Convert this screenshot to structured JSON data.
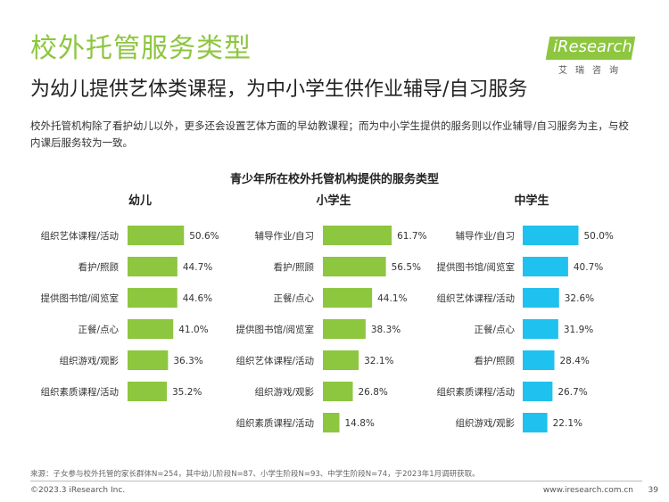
{
  "header": {
    "title": "校外托管服务类型",
    "subtitle": "为幼儿提供艺体类课程，为中小学生供作业辅导/自习服务",
    "description": "校外托管机构除了看护幼儿以外，更多还会设置艺体方面的早幼教课程；而为中小学生提供的服务则以作业辅导/自习服务为主，与校内课后服务较为一致。"
  },
  "logo": {
    "text": "iResearch",
    "sub": "艾瑞咨询"
  },
  "colors": {
    "green": "#8dc63f",
    "blue": "#1fc1ee"
  },
  "chart_data": [
    {
      "type": "bar",
      "orientation": "horizontal",
      "overall_title": "青少年所在校外托管机构提供的服务类型",
      "title": "幼儿",
      "color": "#8dc63f",
      "categories": [
        "组织艺体课程/活动",
        "看护/照顾",
        "提供图书馆/阅览室",
        "正餐/点心",
        "组织游戏/观影",
        "组织素质课程/活动"
      ],
      "values": [
        50.6,
        44.7,
        44.6,
        41.0,
        36.3,
        35.2
      ],
      "labels": [
        "50.6%",
        "44.7%",
        "44.6%",
        "41.0%",
        "36.3%",
        "35.2%"
      ],
      "unit": "%"
    },
    {
      "type": "bar",
      "orientation": "horizontal",
      "title": "小学生",
      "color": "#8dc63f",
      "categories": [
        "辅导作业/自习",
        "看护/照顾",
        "正餐/点心",
        "提供图书馆/阅览室",
        "组织艺体课程/活动",
        "组织游戏/观影",
        "组织素质课程/活动"
      ],
      "values": [
        61.7,
        56.5,
        44.1,
        38.3,
        32.1,
        26.8,
        14.8
      ],
      "labels": [
        "61.7%",
        "56.5%",
        "44.1%",
        "38.3%",
        "32.1%",
        "26.8%",
        "14.8%"
      ],
      "unit": "%"
    },
    {
      "type": "bar",
      "orientation": "horizontal",
      "title": "中学生",
      "color": "#1fc1ee",
      "categories": [
        "辅导作业/自习",
        "提供图书馆/阅览室",
        "组织艺体课程/活动",
        "正餐/点心",
        "看护/照顾",
        "组织素质课程/活动",
        "组织游戏/观影"
      ],
      "values": [
        50.0,
        40.7,
        32.6,
        31.9,
        28.4,
        26.7,
        22.1
      ],
      "labels": [
        "50.0%",
        "40.7%",
        "32.6%",
        "31.9%",
        "28.4%",
        "26.7%",
        "22.1%"
      ],
      "unit": "%"
    }
  ],
  "footer": {
    "source": "来源：子女参与校外托管的家长群体N=254，其中幼儿阶段N=87、小学生阶段N=93、中学生阶段N=74，于2023年1月调研获取。",
    "copyright": "©2023.3 iResearch Inc.",
    "website": "www.iresearch.com.cn",
    "page": "39"
  }
}
